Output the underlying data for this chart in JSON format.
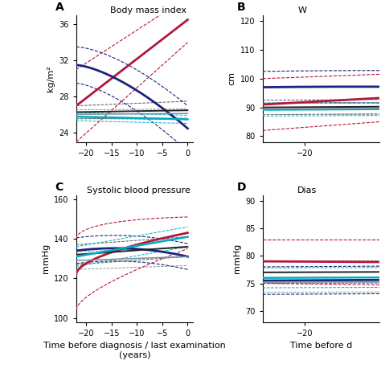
{
  "background": "#ffffff",
  "xlabel_left": "Time before diagnosis / last examination\n(years)",
  "xlabel_right": "Time before d",
  "panel_A": {
    "label": "A",
    "title": "Body mass index",
    "ylabel": "kg/m²",
    "ylim": [
      23,
      37
    ],
    "yticks": [
      24,
      28,
      32,
      36
    ],
    "xlim": [
      -22,
      1
    ],
    "xticks": [
      -20,
      -15,
      -10,
      -5,
      0
    ]
  },
  "panel_B": {
    "label": "B",
    "title": "W",
    "ylabel": "cm",
    "ylim": [
      78,
      122
    ],
    "yticks": [
      80,
      90,
      100,
      110,
      120
    ],
    "xlim": [
      -22,
      1
    ],
    "xticks": [
      -20
    ]
  },
  "panel_C": {
    "label": "C",
    "title": "Systolic blood pressure",
    "ylabel": "mmHg",
    "ylim": [
      98,
      162
    ],
    "yticks": [
      100,
      120,
      140,
      160
    ],
    "xlim": [
      -22,
      1
    ],
    "xticks": [
      -20,
      -15,
      -10,
      -5,
      0
    ]
  },
  "panel_D": {
    "label": "D",
    "title": "Dias",
    "ylabel": "mmHg",
    "ylim": [
      68,
      91
    ],
    "yticks": [
      70,
      75,
      80,
      85,
      90
    ],
    "xlim": [
      -22,
      1
    ],
    "xticks": [
      -20
    ]
  },
  "colors": {
    "red": "#b5173a",
    "darkblue": "#1a237e",
    "black": "#222222",
    "cyan": "#00acc1",
    "gray": "#78909c"
  }
}
